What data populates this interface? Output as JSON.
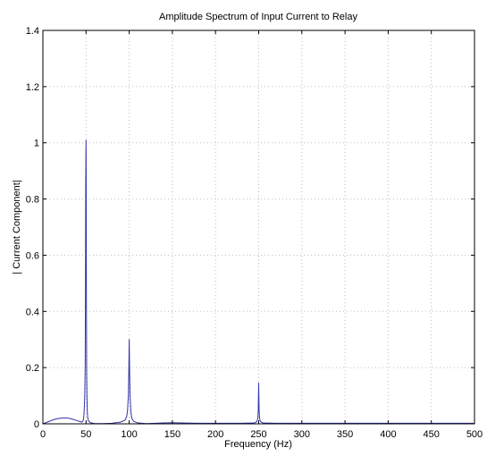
{
  "chart_data": {
    "type": "line",
    "title": "Amplitude Spectrum of Input Current to Relay",
    "xlabel": "Frequency (Hz)",
    "ylabel": "| Current Component|",
    "xlim": [
      0,
      500
    ],
    "ylim": [
      0,
      1.4
    ],
    "xticks": [
      0,
      50,
      100,
      150,
      200,
      250,
      300,
      350,
      400,
      450,
      500
    ],
    "yticks": [
      0,
      0.2,
      0.4,
      0.6,
      0.8,
      1,
      1.2,
      1.4
    ],
    "xtick_labels": [
      "0",
      "50",
      "100",
      "150",
      "200",
      "250",
      "300",
      "350",
      "400",
      "450",
      "500"
    ],
    "ytick_labels": [
      "0",
      "0.2",
      "0.4",
      "0.6",
      "0.8",
      "1",
      "1.2",
      "1.4"
    ],
    "grid": true,
    "line_color": "#3333aa",
    "series": [
      {
        "x": [
          0,
          5,
          10,
          15,
          20,
          25,
          30,
          35,
          40,
          43,
          45,
          46,
          47,
          47.5,
          48,
          48.5,
          49,
          49.3,
          49.6,
          49.8,
          50,
          50.2,
          50.4,
          50.7,
          51,
          51.5,
          52,
          53,
          55,
          60,
          70,
          80,
          90,
          95,
          97,
          98,
          99,
          99.5,
          100,
          100.5,
          101,
          102,
          103,
          105,
          110,
          120,
          130,
          140,
          150,
          160,
          180,
          200,
          230,
          245,
          248,
          249,
          249.5,
          250,
          250.5,
          251,
          252,
          255,
          270,
          300,
          350,
          400,
          450,
          500
        ],
        "y": [
          0.0,
          0.006,
          0.012,
          0.017,
          0.02,
          0.021,
          0.02,
          0.016,
          0.011,
          0.008,
          0.006,
          0.008,
          0.015,
          0.03,
          0.06,
          0.1,
          0.2,
          0.46,
          0.83,
          0.95,
          1.01,
          0.83,
          0.46,
          0.2,
          0.1,
          0.04,
          0.02,
          0.01,
          0.004,
          0.001,
          0.001,
          0.002,
          0.006,
          0.013,
          0.025,
          0.045,
          0.1,
          0.18,
          0.3,
          0.18,
          0.1,
          0.04,
          0.02,
          0.009,
          0.003,
          0.001,
          0.002,
          0.003,
          0.004,
          0.003,
          0.002,
          0.002,
          0.002,
          0.003,
          0.008,
          0.02,
          0.05,
          0.145,
          0.05,
          0.02,
          0.008,
          0.003,
          0.002,
          0.002,
          0.002,
          0.002,
          0.002,
          0.002
        ]
      }
    ]
  }
}
